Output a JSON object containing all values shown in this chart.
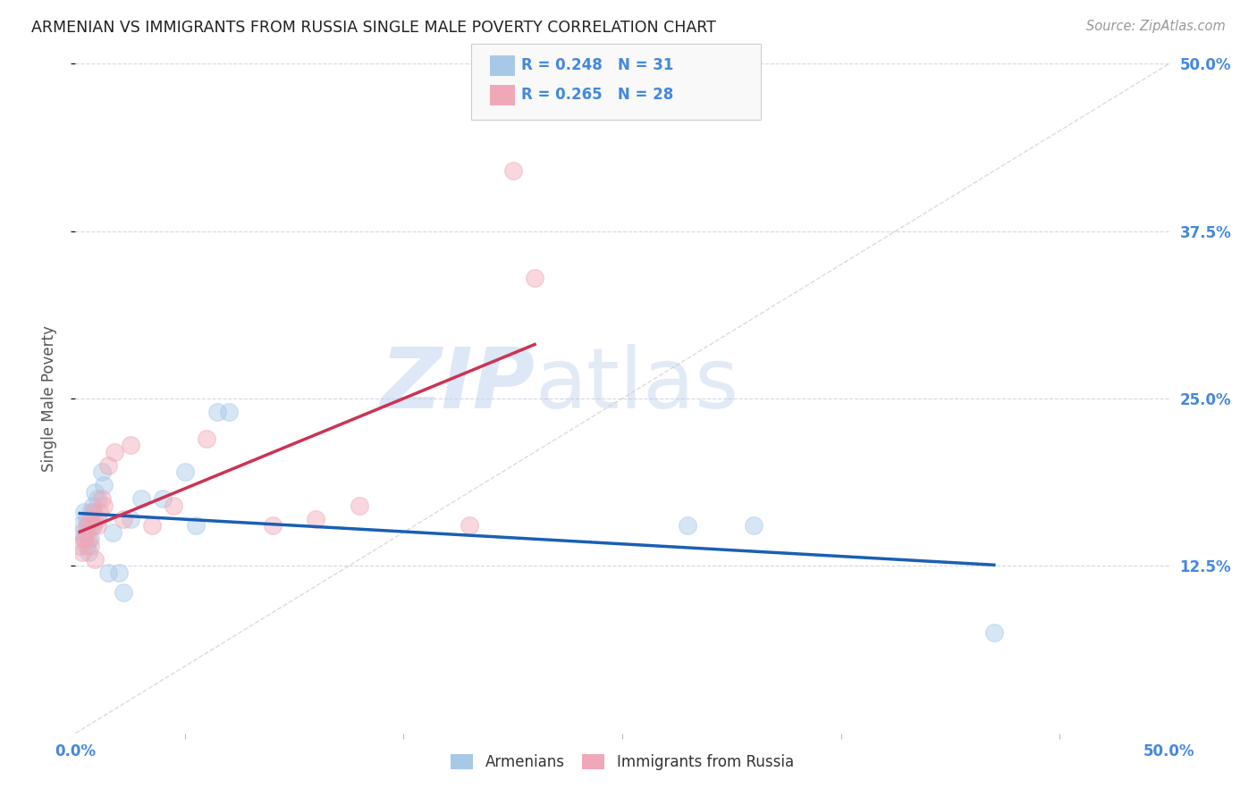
{
  "title": "ARMENIAN VS IMMIGRANTS FROM RUSSIA SINGLE MALE POVERTY CORRELATION CHART",
  "source": "Source: ZipAtlas.com",
  "ylabel": "Single Male Poverty",
  "xlim": [
    0.0,
    0.5
  ],
  "ylim": [
    0.0,
    0.5
  ],
  "yticks": [
    0.125,
    0.25,
    0.375,
    0.5
  ],
  "ytick_labels": [
    "12.5%",
    "25.0%",
    "37.5%",
    "50.0%"
  ],
  "xtick_vals": [
    0.0,
    0.1,
    0.2,
    0.3,
    0.4,
    0.5
  ],
  "xtick_labels": [
    "0.0%",
    "",
    "",
    "",
    "",
    "50.0%"
  ],
  "legend_label_armenians": "Armenians",
  "legend_label_russia": "Immigrants from Russia",
  "r_armenians": "0.248",
  "n_armenians": "31",
  "r_russia": "0.265",
  "n_russia": "28",
  "armenian_color": "#a8c8e8",
  "russia_color": "#f0a8b8",
  "trend_armenian_color": "#1a5fb4",
  "trend_russia_color": "#cc3355",
  "diagonal_color": "#cccccc",
  "background_color": "#ffffff",
  "grid_color": "#ccccdd",
  "title_color": "#222222",
  "axis_label_color": "#4488dd",
  "watermark_zip": "ZIP",
  "watermark_atlas": "atlas",
  "armenian_x": [
    0.002,
    0.003,
    0.004,
    0.004,
    0.005,
    0.005,
    0.006,
    0.006,
    0.007,
    0.007,
    0.008,
    0.008,
    0.009,
    0.01,
    0.01,
    0.012,
    0.013,
    0.015,
    0.017,
    0.02,
    0.022,
    0.025,
    0.03,
    0.04,
    0.05,
    0.055,
    0.065,
    0.07,
    0.28,
    0.31,
    0.42
  ],
  "armenian_y": [
    0.155,
    0.15,
    0.145,
    0.165,
    0.14,
    0.16,
    0.135,
    0.155,
    0.145,
    0.165,
    0.155,
    0.17,
    0.18,
    0.175,
    0.16,
    0.195,
    0.185,
    0.12,
    0.15,
    0.12,
    0.105,
    0.16,
    0.175,
    0.175,
    0.195,
    0.155,
    0.24,
    0.24,
    0.155,
    0.155,
    0.075
  ],
  "russia_x": [
    0.002,
    0.003,
    0.004,
    0.005,
    0.005,
    0.006,
    0.007,
    0.007,
    0.008,
    0.008,
    0.009,
    0.01,
    0.011,
    0.012,
    0.013,
    0.015,
    0.018,
    0.022,
    0.025,
    0.035,
    0.045,
    0.06,
    0.09,
    0.11,
    0.13,
    0.18,
    0.2,
    0.21
  ],
  "russia_y": [
    0.14,
    0.135,
    0.145,
    0.15,
    0.155,
    0.145,
    0.14,
    0.16,
    0.155,
    0.165,
    0.13,
    0.155,
    0.165,
    0.175,
    0.17,
    0.2,
    0.21,
    0.16,
    0.215,
    0.155,
    0.17,
    0.22,
    0.155,
    0.16,
    0.17,
    0.155,
    0.42,
    0.34
  ],
  "marker_size": 200,
  "alpha": 0.45,
  "trend_x_max_russia": 0.21
}
